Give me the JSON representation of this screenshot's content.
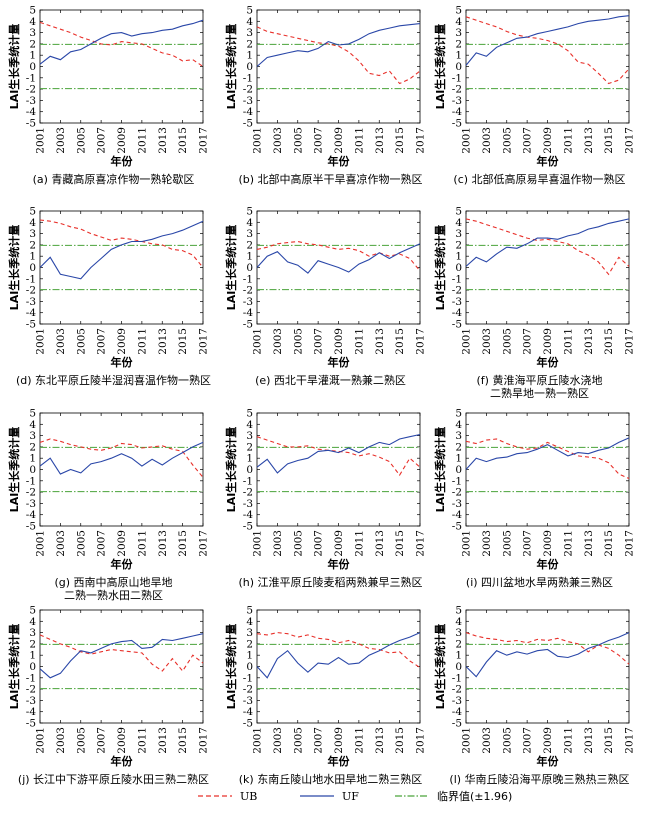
{
  "common": {
    "ylabel": "LAI生长季统计量",
    "xlabel": "年份",
    "yticks": [
      5,
      4,
      3,
      2,
      1,
      0,
      -1,
      -2,
      -3,
      -4,
      -5
    ],
    "xticks": [
      "2001",
      "2003",
      "2005",
      "2007",
      "2009",
      "2011",
      "2013",
      "2015",
      "2017"
    ]
  },
  "legend": {
    "ub_label": "UB",
    "uf_label": "UF",
    "crit_label": "临界值(±1.96)"
  },
  "colors": {
    "ub": "#e8302a",
    "uf": "#2a47a8",
    "crit": "#4aa33a",
    "axis": "#000000"
  },
  "chart_data": [
    {
      "type": "line",
      "caption": "(a) 青藏高原喜凉作物一熟轮歇区",
      "x": [
        2001,
        2002,
        2003,
        2004,
        2005,
        2006,
        2007,
        2008,
        2009,
        2010,
        2011,
        2012,
        2013,
        2014,
        2015,
        2016,
        2017
      ],
      "series": [
        {
          "name": "UB",
          "values": [
            3.9,
            3.6,
            3.3,
            3.0,
            2.6,
            2.3,
            2.0,
            1.9,
            2.2,
            2.1,
            2.0,
            1.6,
            1.2,
            1.0,
            0.5,
            0.6,
            0.0
          ]
        },
        {
          "name": "UF",
          "values": [
            0.2,
            0.9,
            0.6,
            1.3,
            1.5,
            2.0,
            2.5,
            2.9,
            3.0,
            2.7,
            2.9,
            3.0,
            3.2,
            3.3,
            3.6,
            3.8,
            4.1
          ]
        }
      ],
      "critical": [
        1.96,
        -1.96
      ],
      "ylim": [
        -5,
        5
      ],
      "xlim": [
        2001,
        2017
      ]
    },
    {
      "type": "line",
      "caption": "(b) 北部中高原半干旱喜凉作物一熟区",
      "x": [
        2001,
        2002,
        2003,
        2004,
        2005,
        2006,
        2007,
        2008,
        2009,
        2010,
        2011,
        2012,
        2013,
        2014,
        2015,
        2016,
        2017
      ],
      "series": [
        {
          "name": "UB",
          "values": [
            3.5,
            3.1,
            2.9,
            2.7,
            2.5,
            2.3,
            2.1,
            2.0,
            1.8,
            1.3,
            0.5,
            -0.6,
            -0.8,
            -0.4,
            -1.5,
            -1.1,
            -0.4
          ]
        },
        {
          "name": "UF",
          "values": [
            0.0,
            0.8,
            1.0,
            1.2,
            1.4,
            1.3,
            1.6,
            2.2,
            1.9,
            2.0,
            2.4,
            2.9,
            3.2,
            3.4,
            3.6,
            3.7,
            3.8
          ]
        }
      ],
      "critical": [
        1.96,
        -1.96
      ],
      "ylim": [
        -5,
        5
      ],
      "xlim": [
        2001,
        2017
      ]
    },
    {
      "type": "line",
      "caption": "(c) 北部低高原易旱喜温作物一熟区",
      "x": [
        2001,
        2002,
        2003,
        2004,
        2005,
        2006,
        2007,
        2008,
        2009,
        2010,
        2011,
        2012,
        2013,
        2014,
        2015,
        2016,
        2017
      ],
      "series": [
        {
          "name": "UB",
          "values": [
            4.4,
            4.1,
            3.8,
            3.5,
            3.1,
            2.8,
            2.6,
            2.5,
            2.3,
            2.0,
            1.4,
            0.4,
            0.2,
            -0.6,
            -1.5,
            -1.2,
            -0.2
          ]
        },
        {
          "name": "UF",
          "values": [
            0.1,
            1.2,
            0.9,
            1.7,
            2.1,
            2.5,
            2.6,
            2.9,
            3.1,
            3.3,
            3.5,
            3.8,
            4.0,
            4.1,
            4.2,
            4.4,
            4.5
          ]
        }
      ],
      "critical": [
        1.96,
        -1.96
      ],
      "ylim": [
        -5,
        5
      ],
      "xlim": [
        2001,
        2017
      ]
    },
    {
      "type": "line",
      "caption": "(d) 东北平原丘陵半湿润喜温作物一熟区",
      "x": [
        2001,
        2002,
        2003,
        2004,
        2005,
        2006,
        2007,
        2008,
        2009,
        2010,
        2011,
        2012,
        2013,
        2014,
        2015,
        2016,
        2017
      ],
      "series": [
        {
          "name": "UB",
          "values": [
            4.2,
            4.1,
            3.9,
            3.6,
            3.4,
            3.0,
            2.7,
            2.4,
            2.6,
            2.5,
            2.3,
            2.1,
            2.0,
            1.6,
            1.5,
            1.1,
            0.0
          ]
        },
        {
          "name": "UF",
          "values": [
            0.0,
            0.9,
            -0.6,
            -0.8,
            -1.0,
            0.0,
            0.8,
            1.6,
            2.0,
            2.3,
            2.3,
            2.5,
            2.8,
            3.0,
            3.3,
            3.7,
            4.1
          ]
        }
      ],
      "critical": [
        1.96,
        -1.96
      ],
      "ylim": [
        -5,
        5
      ],
      "xlim": [
        2001,
        2017
      ]
    },
    {
      "type": "line",
      "caption": "(e) 西北干旱灌溉一熟兼二熟区",
      "x": [
        2001,
        2002,
        2003,
        2004,
        2005,
        2006,
        2007,
        2008,
        2009,
        2010,
        2011,
        2012,
        2013,
        2014,
        2015,
        2016,
        2017
      ],
      "series": [
        {
          "name": "UB",
          "values": [
            1.6,
            1.8,
            2.1,
            2.2,
            2.3,
            2.1,
            2.0,
            1.8,
            1.6,
            1.7,
            1.5,
            1.0,
            1.3,
            1.0,
            1.2,
            0.8,
            -0.3
          ]
        },
        {
          "name": "UF",
          "values": [
            0.0,
            1.0,
            1.4,
            0.5,
            0.2,
            -0.5,
            0.6,
            0.3,
            0.0,
            -0.4,
            0.3,
            0.7,
            1.3,
            0.8,
            1.3,
            1.7,
            2.1
          ]
        }
      ],
      "critical": [
        1.96,
        -1.96
      ],
      "ylim": [
        -5,
        5
      ],
      "xlim": [
        2001,
        2017
      ]
    },
    {
      "type": "line",
      "caption": "(f) 黄淮海平原丘陵水浇地 二熟旱地一熟一熟区",
      "x": [
        2001,
        2002,
        2003,
        2004,
        2005,
        2006,
        2007,
        2008,
        2009,
        2010,
        2011,
        2012,
        2013,
        2014,
        2015,
        2016,
        2017
      ],
      "series": [
        {
          "name": "UB",
          "values": [
            4.3,
            4.1,
            3.8,
            3.5,
            3.2,
            2.9,
            2.6,
            2.4,
            2.5,
            2.3,
            2.1,
            1.5,
            1.1,
            0.5,
            -0.6,
            0.9,
            0.1
          ]
        },
        {
          "name": "UF",
          "values": [
            0.1,
            0.9,
            0.5,
            1.2,
            1.8,
            1.7,
            2.1,
            2.6,
            2.6,
            2.5,
            2.8,
            3.0,
            3.4,
            3.6,
            3.9,
            4.1,
            4.3
          ]
        }
      ],
      "critical": [
        1.96,
        -1.96
      ],
      "ylim": [
        -5,
        5
      ],
      "xlim": [
        2001,
        2017
      ]
    },
    {
      "type": "line",
      "caption": "(g) 西南中高原山地旱地 二熟一熟水田二熟区",
      "x": [
        2001,
        2002,
        2003,
        2004,
        2005,
        2006,
        2007,
        2008,
        2009,
        2010,
        2011,
        2012,
        2013,
        2014,
        2015,
        2016,
        2017
      ],
      "series": [
        {
          "name": "UB",
          "values": [
            2.4,
            2.7,
            2.5,
            2.2,
            2.0,
            1.8,
            1.7,
            1.9,
            2.3,
            2.2,
            1.9,
            2.0,
            2.1,
            1.8,
            1.6,
            0.4,
            -0.7
          ]
        },
        {
          "name": "UF",
          "values": [
            0.3,
            1.0,
            -0.4,
            0.0,
            -0.3,
            0.5,
            0.7,
            1.0,
            1.4,
            1.0,
            0.3,
            0.9,
            0.4,
            1.0,
            1.5,
            2.0,
            2.4
          ]
        }
      ],
      "critical": [
        1.96,
        -1.96
      ],
      "ylim": [
        -5,
        5
      ],
      "xlim": [
        2001,
        2017
      ]
    },
    {
      "type": "line",
      "caption": "(h) 江淮平原丘陵麦稻两熟兼早三熟区",
      "x": [
        2001,
        2002,
        2003,
        2004,
        2005,
        2006,
        2007,
        2008,
        2009,
        2010,
        2011,
        2012,
        2013,
        2014,
        2015,
        2016,
        2017
      ],
      "series": [
        {
          "name": "UB",
          "values": [
            2.9,
            2.6,
            2.3,
            2.0,
            2.0,
            2.1,
            1.8,
            1.7,
            1.6,
            1.5,
            1.2,
            1.4,
            1.1,
            0.7,
            -0.5,
            1.0,
            0.2
          ]
        },
        {
          "name": "UF",
          "values": [
            0.2,
            0.9,
            -0.3,
            0.5,
            0.8,
            1.0,
            1.6,
            1.7,
            1.5,
            1.9,
            1.5,
            2.0,
            2.4,
            2.2,
            2.7,
            2.9,
            3.1
          ]
        }
      ],
      "critical": [
        1.96,
        -1.96
      ],
      "ylim": [
        -5,
        5
      ],
      "xlim": [
        2001,
        2017
      ]
    },
    {
      "type": "line",
      "caption": "(i) 四川盆地水旱两熟兼三熟区",
      "x": [
        2001,
        2002,
        2003,
        2004,
        2005,
        2006,
        2007,
        2008,
        2009,
        2010,
        2011,
        2012,
        2013,
        2014,
        2015,
        2016,
        2017
      ],
      "series": [
        {
          "name": "UB",
          "values": [
            2.5,
            2.3,
            2.6,
            2.7,
            2.3,
            2.0,
            1.8,
            1.9,
            2.4,
            2.0,
            1.6,
            1.2,
            1.1,
            1.0,
            0.6,
            -0.4,
            -0.8
          ]
        },
        {
          "name": "UF",
          "values": [
            0.0,
            1.0,
            0.7,
            1.0,
            1.1,
            1.4,
            1.5,
            1.8,
            2.2,
            1.7,
            1.2,
            1.5,
            1.4,
            1.7,
            1.9,
            2.4,
            2.8
          ]
        }
      ],
      "critical": [
        1.96,
        -1.96
      ],
      "ylim": [
        -5,
        5
      ],
      "xlim": [
        2001,
        2017
      ]
    },
    {
      "type": "line",
      "caption": "(j) 长江中下游平原丘陵水田三熟二熟区",
      "x": [
        2001,
        2002,
        2003,
        2004,
        2005,
        2006,
        2007,
        2008,
        2009,
        2010,
        2011,
        2012,
        2013,
        2014,
        2015,
        2016,
        2017
      ],
      "series": [
        {
          "name": "UB",
          "values": [
            2.8,
            2.4,
            2.0,
            1.7,
            1.3,
            1.1,
            1.3,
            1.5,
            1.4,
            1.3,
            1.2,
            0.2,
            -0.4,
            0.7,
            -0.4,
            1.0,
            0.3
          ]
        },
        {
          "name": "UF",
          "values": [
            -0.2,
            -1.0,
            -0.6,
            0.5,
            1.4,
            1.2,
            1.6,
            2.0,
            2.2,
            2.3,
            1.6,
            1.7,
            2.4,
            2.3,
            2.5,
            2.7,
            2.9
          ]
        }
      ],
      "critical": [
        1.96,
        -1.96
      ],
      "ylim": [
        -5,
        5
      ],
      "xlim": [
        2001,
        2017
      ]
    },
    {
      "type": "line",
      "caption": "(k) 东南丘陵山地水田旱地二熟三熟区",
      "x": [
        2001,
        2002,
        2003,
        2004,
        2005,
        2006,
        2007,
        2008,
        2009,
        2010,
        2011,
        2012,
        2013,
        2014,
        2015,
        2016,
        2017
      ],
      "series": [
        {
          "name": "UB",
          "values": [
            2.9,
            2.8,
            3.0,
            2.9,
            2.6,
            2.8,
            2.5,
            2.4,
            2.1,
            2.3,
            2.0,
            1.6,
            1.5,
            1.2,
            1.3,
            0.5,
            -0.1
          ]
        },
        {
          "name": "UF",
          "values": [
            0.0,
            -1.0,
            0.7,
            1.4,
            0.3,
            -0.5,
            0.3,
            0.2,
            0.8,
            0.2,
            0.3,
            1.0,
            1.4,
            1.9,
            2.3,
            2.6,
            3.0
          ]
        }
      ],
      "critical": [
        1.96,
        -1.96
      ],
      "ylim": [
        -5,
        5
      ],
      "xlim": [
        2001,
        2017
      ]
    },
    {
      "type": "line",
      "caption": "(l) 华南丘陵沿海平原晚三熟热三熟区",
      "x": [
        2001,
        2002,
        2003,
        2004,
        2005,
        2006,
        2007,
        2008,
        2009,
        2010,
        2011,
        2012,
        2013,
        2014,
        2015,
        2016,
        2017
      ],
      "series": [
        {
          "name": "UB",
          "values": [
            3.0,
            2.7,
            2.5,
            2.4,
            2.2,
            2.3,
            2.1,
            2.4,
            2.3,
            2.5,
            2.2,
            2.0,
            1.3,
            1.9,
            1.6,
            1.0,
            0.2
          ]
        },
        {
          "name": "UF",
          "values": [
            0.0,
            -0.9,
            0.4,
            1.4,
            1.0,
            1.3,
            1.1,
            1.4,
            1.5,
            0.9,
            0.8,
            1.1,
            1.6,
            1.9,
            2.3,
            2.6,
            3.0
          ]
        }
      ],
      "critical": [
        1.96,
        -1.96
      ],
      "ylim": [
        -5,
        5
      ],
      "xlim": [
        2001,
        2017
      ]
    }
  ]
}
